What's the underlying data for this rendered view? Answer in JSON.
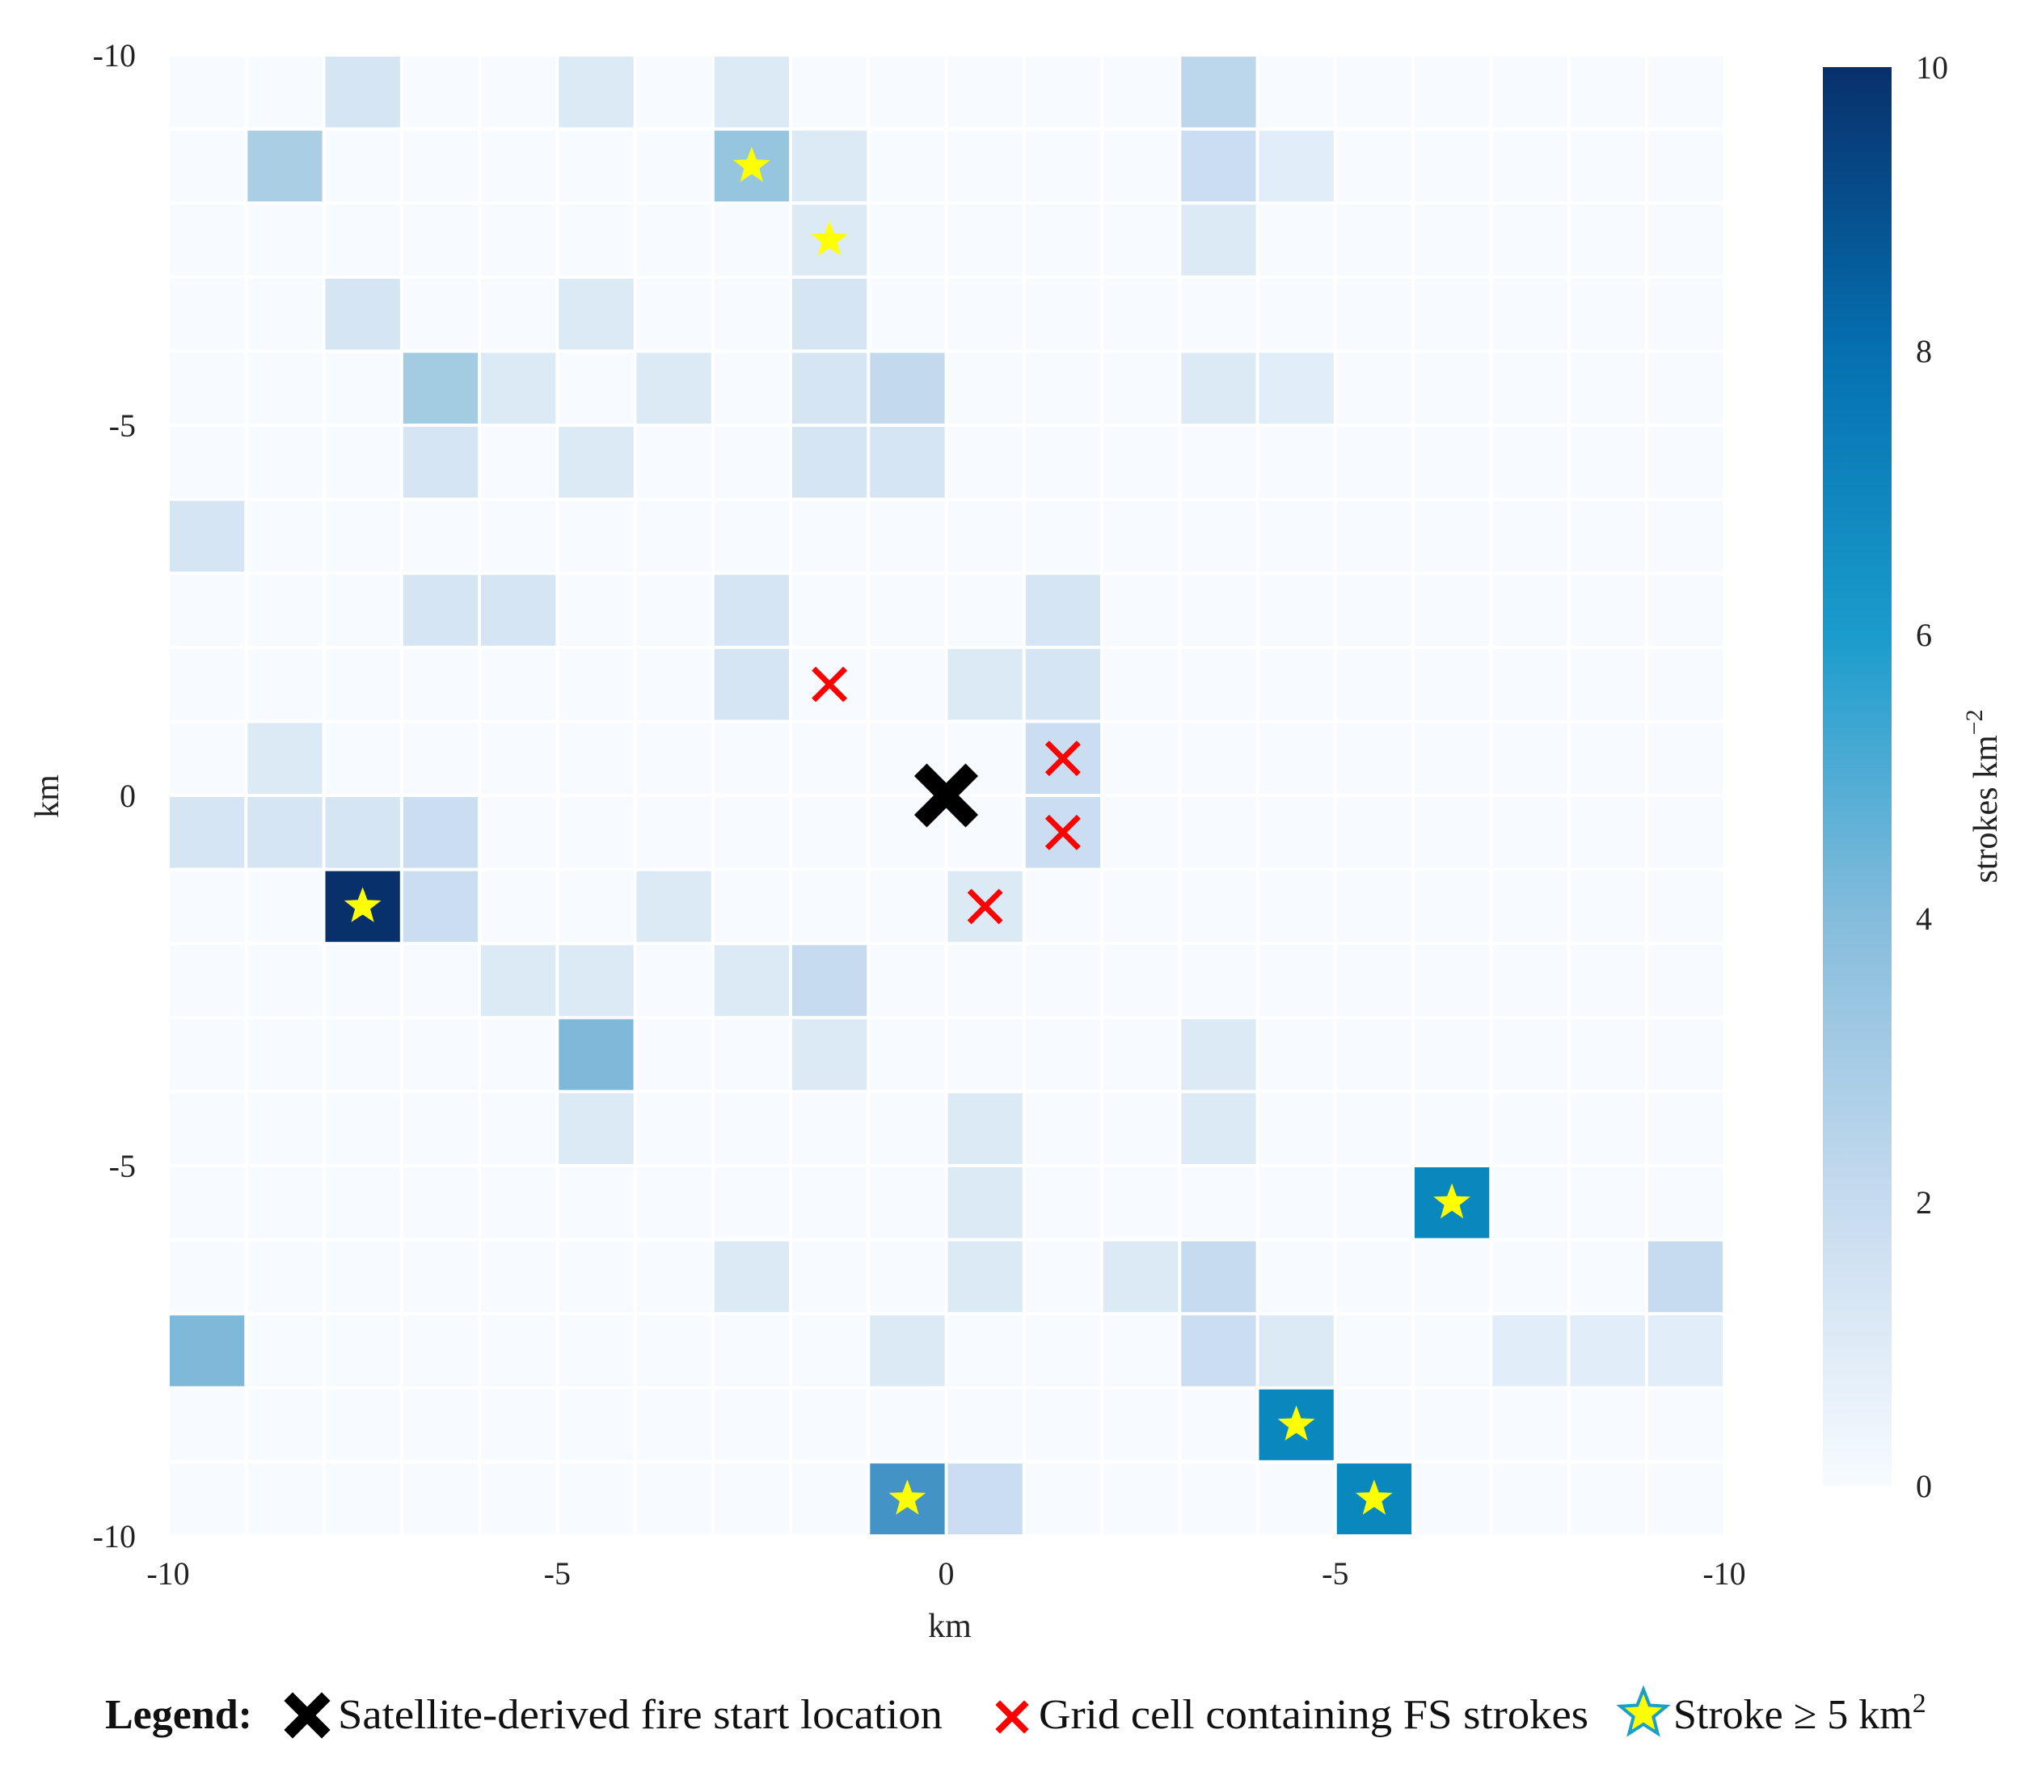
{
  "chart_data": {
    "type": "heatmap",
    "title": "",
    "xlabel": "km",
    "ylabel": "km",
    "x_ticks": [
      "-10",
      "-5",
      "0",
      "-5",
      "-10"
    ],
    "y_ticks": [
      "-10",
      "-5",
      "0",
      "-5",
      "-10"
    ],
    "grid_size": 20,
    "colorbar": {
      "label": "strokes km",
      "label_exponent": "−2",
      "min": 0,
      "max": 10,
      "ticks": [
        "0",
        "2",
        "4",
        "6",
        "8",
        "10"
      ],
      "colors": [
        "#f7fbff",
        "#deebf7",
        "#c6dbef",
        "#9ecae1",
        "#6baed6",
        "#4292c6",
        "#0a8bbf",
        "#0570b0",
        "#045a8d",
        "#08306b"
      ]
    },
    "cells": [
      [
        0,
        2,
        1.5
      ],
      [
        0,
        5,
        1.2
      ],
      [
        0,
        7,
        1.2
      ],
      [
        0,
        13,
        2.5
      ],
      [
        1,
        1,
        3.0
      ],
      [
        1,
        7,
        3.5
      ],
      [
        1,
        8,
        1.2
      ],
      [
        1,
        13,
        2.0
      ],
      [
        1,
        14,
        1.0
      ],
      [
        2,
        8,
        1.2
      ],
      [
        2,
        13,
        1.2
      ],
      [
        3,
        2,
        1.5
      ],
      [
        3,
        5,
        1.2
      ],
      [
        3,
        8,
        1.5
      ],
      [
        4,
        3,
        3.2
      ],
      [
        4,
        4,
        1.2
      ],
      [
        4,
        6,
        1.2
      ],
      [
        4,
        8,
        1.5
      ],
      [
        4,
        9,
        2.3
      ],
      [
        4,
        13,
        1.2
      ],
      [
        4,
        14,
        1.0
      ],
      [
        5,
        3,
        1.5
      ],
      [
        5,
        5,
        1.2
      ],
      [
        5,
        8,
        1.5
      ],
      [
        5,
        9,
        1.5
      ],
      [
        6,
        0,
        1.5
      ],
      [
        7,
        3,
        1.5
      ],
      [
        7,
        4,
        1.5
      ],
      [
        7,
        7,
        1.5
      ],
      [
        7,
        11,
        1.5
      ],
      [
        8,
        7,
        1.5
      ],
      [
        8,
        10,
        1.2
      ],
      [
        8,
        11,
        1.5
      ],
      [
        9,
        1,
        1.2
      ],
      [
        9,
        11,
        2.0
      ],
      [
        10,
        0,
        1.5
      ],
      [
        10,
        1,
        1.5
      ],
      [
        10,
        2,
        1.5
      ],
      [
        10,
        3,
        2.0
      ],
      [
        10,
        11,
        2.0
      ],
      [
        11,
        2,
        10.0
      ],
      [
        11,
        3,
        2.0
      ],
      [
        11,
        6,
        1.2
      ],
      [
        11,
        10,
        1.2
      ],
      [
        12,
        4,
        1.2
      ],
      [
        12,
        5,
        1.2
      ],
      [
        12,
        7,
        1.2
      ],
      [
        12,
        8,
        2.2
      ],
      [
        13,
        5,
        4.0
      ],
      [
        13,
        8,
        1.2
      ],
      [
        13,
        13,
        1.2
      ],
      [
        14,
        5,
        1.2
      ],
      [
        14,
        10,
        1.2
      ],
      [
        14,
        13,
        1.2
      ],
      [
        15,
        10,
        1.2
      ],
      [
        15,
        16,
        6.8
      ],
      [
        16,
        7,
        1.2
      ],
      [
        16,
        10,
        1.2
      ],
      [
        16,
        12,
        1.2
      ],
      [
        16,
        13,
        2.2
      ],
      [
        16,
        19,
        2.2
      ],
      [
        17,
        0,
        4.0
      ],
      [
        17,
        9,
        1.2
      ],
      [
        17,
        13,
        2.0
      ],
      [
        17,
        14,
        1.2
      ],
      [
        17,
        17,
        1.0
      ],
      [
        17,
        18,
        1.0
      ],
      [
        17,
        19,
        1.0
      ],
      [
        18,
        14,
        6.8
      ],
      [
        19,
        9,
        5.5
      ],
      [
        19,
        10,
        2.0
      ],
      [
        19,
        15,
        6.8
      ]
    ],
    "stars": [
      [
        1,
        7
      ],
      [
        2,
        8
      ],
      [
        11,
        2
      ],
      [
        15,
        16
      ],
      [
        18,
        14
      ],
      [
        19,
        9
      ],
      [
        19,
        15
      ]
    ],
    "red_x": [
      [
        8,
        8
      ],
      [
        9,
        11
      ],
      [
        10,
        11
      ],
      [
        11,
        10
      ]
    ],
    "fire_start": [
      10,
      10
    ],
    "legend": {
      "title": "Legend:",
      "fire_start": "Satellite-derived  fire  start  location",
      "fs_cell": "Grid cell containing FS strokes",
      "stroke_prefix": "Stroke ≥ 5 km",
      "stroke_sup": "2"
    }
  }
}
